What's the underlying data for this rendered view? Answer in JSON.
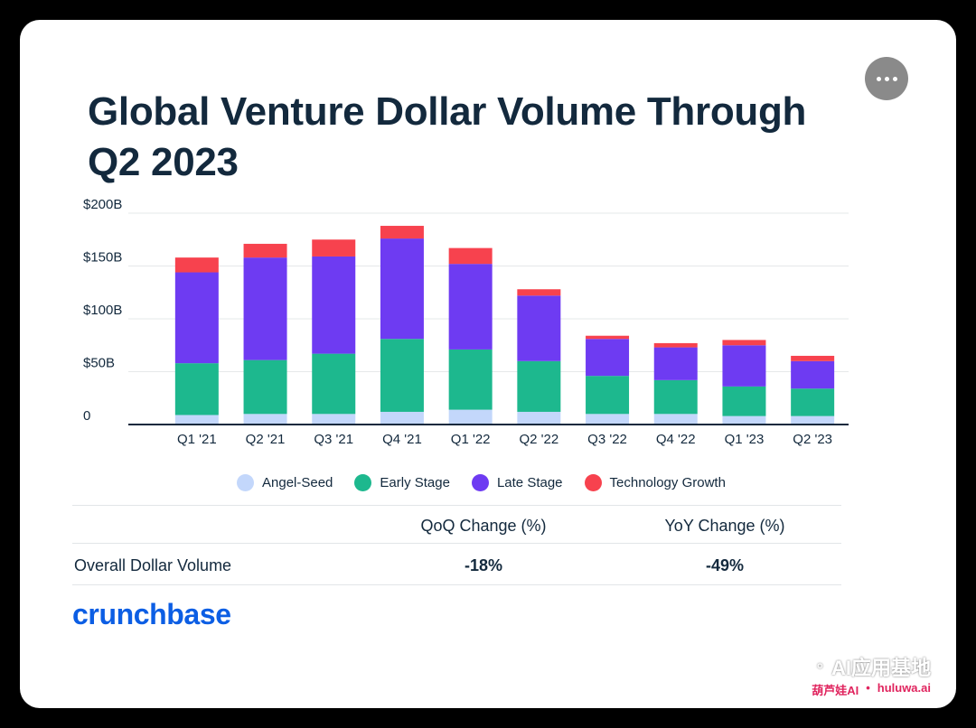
{
  "title": "Global Venture Dollar Volume Through Q2 2023",
  "chart_data": {
    "type": "bar",
    "stacked": true,
    "title": "Global Venture Dollar Volume Through Q2 2023",
    "xlabel": "",
    "ylabel": "",
    "ylim": [
      0,
      200
    ],
    "yticks": [
      0,
      50,
      100,
      150,
      200
    ],
    "ytick_labels": [
      "0",
      "$50B",
      "$100B",
      "$150B",
      "$200B"
    ],
    "categories": [
      "Q1 '21",
      "Q2 '21",
      "Q3 '21",
      "Q4 '21",
      "Q1 '22",
      "Q2 '22",
      "Q3 '22",
      "Q4 '22",
      "Q1 '23",
      "Q2 '23"
    ],
    "series": [
      {
        "name": "Angel-Seed",
        "color": "#c3d7fb",
        "values": [
          9,
          10,
          10,
          12,
          14,
          12,
          10,
          10,
          8,
          8
        ]
      },
      {
        "name": "Early Stage",
        "color": "#1db88e",
        "values": [
          49,
          51,
          57,
          69,
          57,
          48,
          36,
          32,
          28,
          26
        ]
      },
      {
        "name": "Late Stage",
        "color": "#6e3bf2",
        "values": [
          86,
          97,
          92,
          95,
          81,
          62,
          35,
          31,
          39,
          26
        ]
      },
      {
        "name": "Technology Growth",
        "color": "#f7424e",
        "values": [
          14,
          13,
          16,
          12,
          15,
          6,
          3,
          4,
          5,
          5
        ]
      }
    ],
    "legend_position": "bottom"
  },
  "legend": [
    {
      "label": "Angel-Seed",
      "color": "#c3d7fb"
    },
    {
      "label": "Early Stage",
      "color": "#1db88e"
    },
    {
      "label": "Late Stage",
      "color": "#6e3bf2"
    },
    {
      "label": "Technology Growth",
      "color": "#f7424e"
    }
  ],
  "summary": {
    "columns": [
      "QoQ Change (%)",
      "YoY Change (%)"
    ],
    "row_label": "Overall Dollar Volume",
    "values": [
      "-18%",
      "-49%"
    ]
  },
  "logo": "crunchbase",
  "watermark": {
    "top": "AI应用基地",
    "bottom_left": "葫芦娃AI",
    "separator": "•",
    "bottom_right": "huluwa.ai"
  },
  "colors": {
    "title": "#13293d",
    "brand": "#0c5ee4",
    "grid": "#e6e8ea",
    "axis": "#13293d"
  }
}
